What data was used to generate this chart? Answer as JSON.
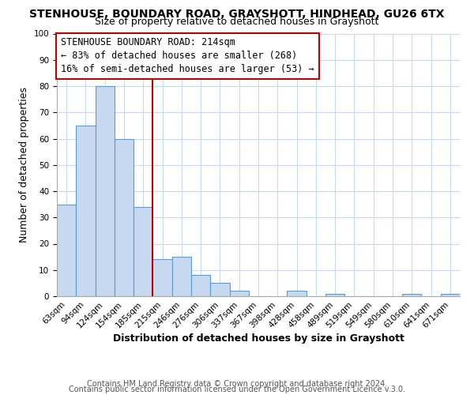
{
  "title": "STENHOUSE, BOUNDARY ROAD, GRAYSHOTT, HINDHEAD, GU26 6TX",
  "subtitle": "Size of property relative to detached houses in Grayshott",
  "xlabel": "Distribution of detached houses by size in Grayshott",
  "ylabel": "Number of detached properties",
  "all_labels": [
    "63sqm",
    "94sqm",
    "124sqm",
    "154sqm",
    "185sqm",
    "215sqm",
    "246sqm",
    "276sqm",
    "306sqm",
    "337sqm",
    "367sqm",
    "398sqm",
    "428sqm",
    "458sqm",
    "489sqm",
    "519sqm",
    "549sqm",
    "580sqm",
    "610sqm",
    "641sqm",
    "671sqm"
  ],
  "bar_counts": [
    35,
    65,
    80,
    60,
    34,
    14,
    15,
    8,
    5,
    2,
    0,
    0,
    2,
    0,
    1,
    0,
    0,
    0,
    1,
    0,
    1
  ],
  "bar_color": "#c6d9f0",
  "bar_edge_color": "#5b9bd5",
  "vline_x": 5,
  "vline_color": "#c00000",
  "annotation_text": "STENHOUSE BOUNDARY ROAD: 214sqm\n← 83% of detached houses are smaller (268)\n16% of semi-detached houses are larger (53) →",
  "annotation_box_color": "#c00000",
  "ylim": [
    0,
    100
  ],
  "yticks": [
    0,
    10,
    20,
    30,
    40,
    50,
    60,
    70,
    80,
    90,
    100
  ],
  "grid_color": "#c6d9f0",
  "footer1": "Contains HM Land Registry data © Crown copyright and database right 2024.",
  "footer2": "Contains public sector information licensed under the Open Government Licence v.3.0.",
  "title_fontsize": 10,
  "subtitle_fontsize": 9,
  "label_fontsize": 9,
  "tick_fontsize": 7.5,
  "annotation_fontsize": 8.5,
  "footer_fontsize": 7
}
